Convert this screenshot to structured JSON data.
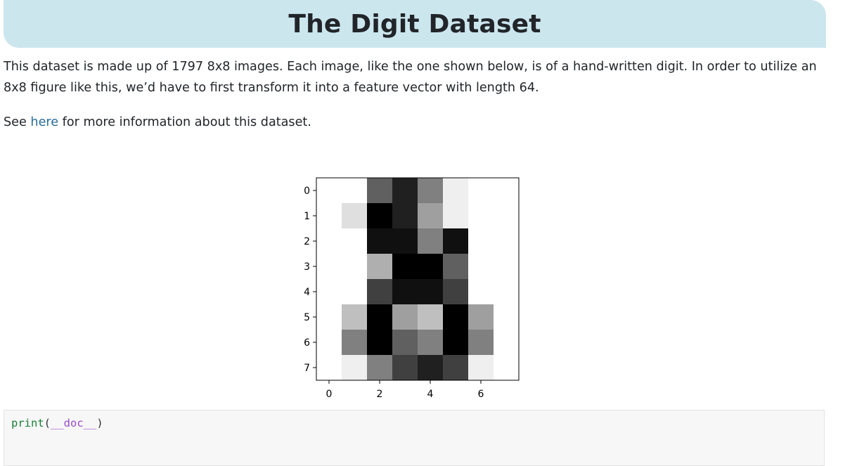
{
  "header": {
    "title": "The Digit Dataset"
  },
  "intro": {
    "paragraph": "This dataset is made up of 1797 8x8 images. Each image, like the one shown below, is of a hand-written digit. In order to utilize an 8x8 figure like this, we’d have to first transform it into a feature vector with length 64.",
    "see_prefix": "See ",
    "see_link": "here",
    "see_suffix": " for more information about this dataset."
  },
  "chart_data": {
    "type": "heatmap",
    "title": "",
    "cmap": "gray_r",
    "vmin": 0,
    "vmax": 16,
    "x_ticks": [
      0,
      2,
      4,
      6
    ],
    "y_ticks": [
      0,
      1,
      2,
      3,
      4,
      5,
      6,
      7
    ],
    "values": [
      [
        0,
        0,
        10,
        14,
        8,
        1,
        0,
        0
      ],
      [
        0,
        2,
        16,
        14,
        6,
        1,
        0,
        0
      ],
      [
        0,
        0,
        15,
        15,
        8,
        15,
        0,
        0
      ],
      [
        0,
        0,
        5,
        16,
        16,
        10,
        0,
        0
      ],
      [
        0,
        0,
        12,
        15,
        15,
        12,
        0,
        0
      ],
      [
        0,
        4,
        16,
        6,
        4,
        16,
        6,
        0
      ],
      [
        0,
        8,
        16,
        10,
        8,
        16,
        8,
        0
      ],
      [
        0,
        1,
        8,
        12,
        14,
        12,
        1,
        0
      ]
    ]
  },
  "code": {
    "fn": "print",
    "open": "(",
    "arg": "__doc__",
    "close": ")"
  }
}
